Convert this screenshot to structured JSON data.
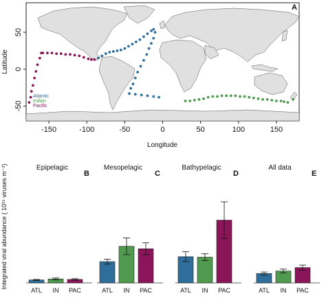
{
  "chart_data": [
    {
      "type": "scatter",
      "panel": "A",
      "xlabel": "Longitude",
      "ylabel": "Latitude",
      "xlim": [
        -180,
        180
      ],
      "ylim": [
        -70,
        90
      ],
      "xticks": [
        -150,
        -100,
        -50,
        0,
        50,
        100,
        150
      ],
      "yticks": [
        -50,
        0,
        50
      ],
      "legend": [
        "Atlantic",
        "Indian",
        "Pacific"
      ],
      "legend_position": "left",
      "colors": {
        "Atlantic": "#2f6d9a",
        "Indian": "#4f9a4f",
        "Pacific": "#8b1559"
      },
      "series": [
        {
          "name": "Pacific",
          "points": [
            [
              -176,
              -45
            ],
            [
              -174,
              -38
            ],
            [
              -173,
              -30
            ],
            [
              -171,
              -22
            ],
            [
              -169,
              -12
            ],
            [
              -167,
              -3
            ],
            [
              -165,
              6
            ],
            [
              -162,
              15
            ],
            [
              -160,
              22
            ],
            [
              -158,
              22
            ],
            [
              -152,
              22
            ],
            [
              -146,
              22
            ],
            [
              -140,
              21
            ],
            [
              -134,
              21
            ],
            [
              -128,
              20
            ],
            [
              -122,
              20
            ],
            [
              -116,
              19
            ],
            [
              -110,
              18
            ],
            [
              -104,
              16
            ],
            [
              -98,
              14
            ],
            [
              -94,
              13
            ],
            [
              -90,
              13
            ]
          ]
        },
        {
          "name": "Atlantic",
          "points": [
            [
              -85,
              15
            ],
            [
              -80,
              18
            ],
            [
              -75,
              21
            ],
            [
              -70,
              23
            ],
            [
              -65,
              24
            ],
            [
              -60,
              25
            ],
            [
              -55,
              26
            ],
            [
              -50,
              28
            ],
            [
              -45,
              31
            ],
            [
              -40,
              34
            ],
            [
              -35,
              37
            ],
            [
              -30,
              40
            ],
            [
              -25,
              44
            ],
            [
              -20,
              48
            ],
            [
              -15,
              52
            ],
            [
              -12,
              54
            ],
            [
              -10,
              50
            ],
            [
              -12,
              42
            ],
            [
              -15,
              35
            ],
            [
              -18,
              28
            ],
            [
              -21,
              20
            ],
            [
              -25,
              12
            ],
            [
              -29,
              4
            ],
            [
              -33,
              -4
            ],
            [
              -36,
              -12
            ],
            [
              -39,
              -20
            ],
            [
              -42,
              -26
            ],
            [
              -44,
              -33
            ],
            [
              -36,
              -34
            ],
            [
              -28,
              -35
            ],
            [
              -20,
              -36
            ],
            [
              -12,
              -37
            ],
            [
              -5,
              -38
            ]
          ]
        },
        {
          "name": "Indian",
          "points": [
            [
              30,
              -43
            ],
            [
              36,
              -43
            ],
            [
              42,
              -42
            ],
            [
              48,
              -41
            ],
            [
              54,
              -40
            ],
            [
              60,
              -38
            ],
            [
              66,
              -37
            ],
            [
              72,
              -37
            ],
            [
              78,
              -36
            ],
            [
              84,
              -36
            ],
            [
              90,
              -36
            ],
            [
              96,
              -36
            ],
            [
              102,
              -37
            ],
            [
              108,
              -37
            ],
            [
              114,
              -38
            ],
            [
              120,
              -39
            ],
            [
              126,
              -40
            ],
            [
              132,
              -41
            ],
            [
              138,
              -41
            ],
            [
              144,
              -42
            ],
            [
              150,
              -43
            ],
            [
              156,
              -43
            ],
            [
              160,
              -44
            ],
            [
              165,
              -45
            ],
            [
              172,
              -41
            ]
          ]
        }
      ]
    },
    {
      "type": "bar",
      "panel": "B",
      "title": "Epipelagic",
      "categories": [
        "ATL",
        "IN",
        "PAC"
      ],
      "values": [
        0.06,
        0.08,
        0.07
      ],
      "errors": [
        0.01,
        0.02,
        0.015
      ],
      "ylim": [
        0,
        2.0
      ],
      "colors": [
        "#2f6d9a",
        "#4f9a4f",
        "#8b1559"
      ]
    },
    {
      "type": "bar",
      "panel": "C",
      "title": "Mesopelagic",
      "categories": [
        "ATL",
        "IN",
        "PAC"
      ],
      "values": [
        0.43,
        0.74,
        0.69
      ],
      "errors": [
        0.05,
        0.17,
        0.12
      ],
      "ylim": [
        0,
        2.0
      ],
      "colors": [
        "#2f6d9a",
        "#4f9a4f",
        "#8b1559"
      ]
    },
    {
      "type": "bar",
      "panel": "D",
      "title": "Bathypelagic",
      "categories": [
        "ATL",
        "IN",
        "PAC"
      ],
      "values": [
        0.53,
        0.52,
        1.27
      ],
      "errors": [
        0.1,
        0.07,
        0.37
      ],
      "ylim": [
        0,
        2.0
      ],
      "colors": [
        "#2f6d9a",
        "#4f9a4f",
        "#8b1559"
      ]
    },
    {
      "type": "bar",
      "panel": "E",
      "title": "All data",
      "categories": [
        "ATL",
        "IN",
        "PAC"
      ],
      "values": [
        0.19,
        0.24,
        0.31
      ],
      "errors": [
        0.03,
        0.04,
        0.05
      ],
      "ylim": [
        0,
        2.0
      ],
      "colors": [
        "#2f6d9a",
        "#4f9a4f",
        "#8b1559"
      ]
    }
  ],
  "labels": {
    "shared_ylabel": "Integrated viral abundance ( 10¹⁵ viruses m⁻²)"
  }
}
